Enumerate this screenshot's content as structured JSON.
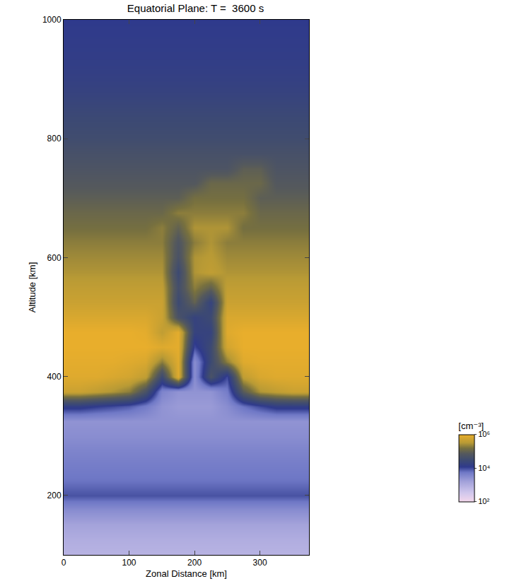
{
  "chart_data": {
    "type": "heatmap",
    "title": "Equatorial Plane: T =  3600 s",
    "x_label": "Zonal Distance [km]",
    "y_label": "Altitude [km]",
    "xlim": [
      0,
      375
    ],
    "ylim": [
      100,
      1000
    ],
    "xticks": [
      0,
      100,
      200,
      300
    ],
    "yticks": [
      200,
      400,
      600,
      800,
      1000
    ],
    "x": [
      0,
      25,
      50,
      75,
      100,
      125,
      150,
      175,
      200,
      225,
      250,
      275,
      300,
      325,
      350,
      375
    ],
    "y": [
      100,
      125,
      150,
      175,
      200,
      225,
      250,
      275,
      300,
      325,
      350,
      375,
      400,
      425,
      450,
      475,
      500,
      525,
      550,
      575,
      600,
      625,
      650,
      675,
      700,
      725,
      750,
      775,
      800,
      825,
      850,
      875,
      900,
      925,
      950,
      975,
      1000
    ],
    "cells": [
      [
        800.0,
        800.0,
        800.0,
        800.0,
        800.0,
        800.0,
        800.0,
        800.0,
        800.0,
        800.0,
        800.0,
        800.0,
        800.0,
        800.0,
        800.0,
        800.0
      ],
      [
        1000.0,
        1000.0,
        1000.0,
        1000.0,
        1000.0,
        1000.0,
        1000.0,
        1000.0,
        1000.0,
        1000.0,
        1000.0,
        1000.0,
        1000.0,
        1000.0,
        1000.0,
        1000.0
      ],
      [
        1500.0,
        1500.0,
        1500.0,
        1500.0,
        1500.0,
        1500.0,
        1500.0,
        1500.0,
        1500.0,
        1500.0,
        1500.0,
        1500.0,
        1500.0,
        1500.0,
        1500.0,
        1500.0
      ],
      [
        3000.0,
        3000.0,
        3000.0,
        3000.0,
        3000.0,
        3000.0,
        3000.0,
        3000.0,
        3000.0,
        3000.0,
        3000.0,
        3000.0,
        3000.0,
        3000.0,
        3000.0,
        3000.0
      ],
      [
        9000.0,
        9000.0,
        9000.0,
        9000.0,
        9000.0,
        9000.0,
        9000.0,
        9000.0,
        9000.0,
        9000.0,
        9000.0,
        9000.0,
        9000.0,
        9000.0,
        9000.0,
        9000.0
      ],
      [
        6000.0,
        6000.0,
        6000.0,
        6000.0,
        6000.0,
        6000.0,
        6000.0,
        6000.0,
        6000.0,
        6000.0,
        6000.0,
        6000.0,
        6000.0,
        6000.0,
        6000.0,
        6000.0
      ],
      [
        5000.0,
        5000.0,
        5000.0,
        5000.0,
        5000.0,
        5000.0,
        5000.0,
        5000.0,
        5000.0,
        5000.0,
        5000.0,
        5000.0,
        5000.0,
        5000.0,
        5000.0,
        5000.0
      ],
      [
        4000.0,
        4000.0,
        4000.0,
        4000.0,
        4000.0,
        4000.0,
        4000.0,
        4000.0,
        4000.0,
        4000.0,
        4000.0,
        4000.0,
        4000.0,
        4000.0,
        4000.0,
        4000.0
      ],
      [
        3000.0,
        3000.0,
        3000.0,
        3000.0,
        3000.0,
        3000.0,
        3000.0,
        3000.0,
        3000.0,
        3000.0,
        3000.0,
        3000.0,
        3000.0,
        3000.0,
        3000.0,
        3000.0
      ],
      [
        2500.0,
        2500.0,
        2500.0,
        2500.0,
        2500.0,
        2500.0,
        2500.0,
        2500.0,
        2500.0,
        2500.0,
        2500.0,
        2500.0,
        2500.0,
        2500.0,
        2500.0,
        2500.0
      ],
      [
        15000.0,
        15000.0,
        12000.0,
        10000.0,
        8000.0,
        5000.0,
        2500.0,
        2000.0,
        2000.0,
        2000.0,
        3000.0,
        6000.0,
        10000.0,
        15000.0,
        15000.0,
        15000.0
      ],
      [
        500000.0,
        500000.0,
        400000.0,
        300000.0,
        200000.0,
        50000.0,
        4000.0,
        2500.0,
        2500.0,
        2500.0,
        5000.0,
        80000.0,
        300000.0,
        400000.0,
        500000.0,
        500000.0
      ],
      [
        800000.0,
        800000.0,
        800000.0,
        700000.0,
        600000.0,
        400000.0,
        30000.0,
        800000.0,
        3000.0,
        50000.0,
        10000.0,
        400000.0,
        700000.0,
        800000.0,
        800000.0,
        800000.0
      ],
      [
        900000.0,
        900000.0,
        900000.0,
        900000.0,
        800000.0,
        700000.0,
        200000.0,
        800000.0,
        3000.0,
        30000.0,
        200000.0,
        800000.0,
        900000.0,
        900000.0,
        900000.0,
        900000.0
      ],
      [
        1000000.0,
        1000000.0,
        1000000.0,
        1000000.0,
        1000000.0,
        1000000.0,
        800000.0,
        900000.0,
        10000.0,
        30000.0,
        600000.0,
        1000000.0,
        1000000.0,
        1000000.0,
        1000000.0,
        1000000.0
      ],
      [
        1000000.0,
        1000000.0,
        1000000.0,
        1000000.0,
        1000000.0,
        900000.0,
        400000.0,
        900000.0,
        20000.0,
        20000.0,
        800000.0,
        1000000.0,
        1000000.0,
        1000000.0,
        1000000.0,
        1000000.0
      ],
      [
        700000.0,
        700000.0,
        700000.0,
        700000.0,
        700000.0,
        700000.0,
        500000.0,
        50000.0,
        20000.0,
        30000.0,
        700000.0,
        700000.0,
        700000.0,
        700000.0,
        700000.0,
        700000.0
      ],
      [
        500000.0,
        500000.0,
        500000.0,
        500000.0,
        500000.0,
        500000.0,
        500000.0,
        30000.0,
        100000.0,
        20000.0,
        500000.0,
        500000.0,
        500000.0,
        500000.0,
        500000.0,
        500000.0
      ],
      [
        400000.0,
        400000.0,
        400000.0,
        400000.0,
        400000.0,
        400000.0,
        400000.0,
        40000.0,
        200000.0,
        100000.0,
        400000.0,
        400000.0,
        400000.0,
        400000.0,
        400000.0,
        400000.0
      ],
      [
        300000.0,
        300000.0,
        300000.0,
        300000.0,
        300000.0,
        300000.0,
        300000.0,
        30000.0,
        300000.0,
        400000.0,
        300000.0,
        300000.0,
        300000.0,
        300000.0,
        300000.0,
        300000.0
      ],
      [
        250000.0,
        250000.0,
        250000.0,
        250000.0,
        250000.0,
        250000.0,
        250000.0,
        50000.0,
        300000.0,
        350000.0,
        250000.0,
        250000.0,
        250000.0,
        250000.0,
        250000.0,
        250000.0
      ],
      [
        200000.0,
        200000.0,
        200000.0,
        200000.0,
        200000.0,
        200000.0,
        200000.0,
        60000.0,
        200000.0,
        300000.0,
        200000.0,
        200000.0,
        200000.0,
        200000.0,
        200000.0,
        200000.0
      ],
      [
        150000.0,
        150000.0,
        150000.0,
        150000.0,
        150000.0,
        150000.0,
        200000.0,
        100000.0,
        300000.0,
        300000.0,
        300000.0,
        150000.0,
        150000.0,
        150000.0,
        150000.0,
        150000.0
      ],
      [
        120000.0,
        120000.0,
        120000.0,
        120000.0,
        120000.0,
        120000.0,
        120000.0,
        200000.0,
        200000.0,
        200000.0,
        200000.0,
        200000.0,
        120000.0,
        120000.0,
        120000.0,
        120000.0
      ],
      [
        90000.0,
        90000.0,
        90000.0,
        90000.0,
        90000.0,
        90000.0,
        90000.0,
        90000.0,
        150000.0,
        150000.0,
        150000.0,
        150000.0,
        90000.0,
        90000.0,
        90000.0,
        90000.0
      ],
      [
        70000.0,
        70000.0,
        70000.0,
        70000.0,
        70000.0,
        70000.0,
        70000.0,
        70000.0,
        70000.0,
        120000.0,
        120000.0,
        120000.0,
        120000.0,
        70000.0,
        70000.0,
        70000.0
      ],
      [
        55000.0,
        55000.0,
        55000.0,
        55000.0,
        55000.0,
        55000.0,
        55000.0,
        55000.0,
        55000.0,
        55000.0,
        55000.0,
        90000.0,
        90000.0,
        55000.0,
        55000.0,
        55000.0
      ],
      [
        45000.0,
        45000.0,
        45000.0,
        45000.0,
        45000.0,
        45000.0,
        45000.0,
        45000.0,
        45000.0,
        45000.0,
        45000.0,
        45000.0,
        45000.0,
        45000.0,
        45000.0,
        45000.0
      ],
      [
        35000.0,
        35000.0,
        35000.0,
        35000.0,
        35000.0,
        35000.0,
        35000.0,
        35000.0,
        35000.0,
        35000.0,
        35000.0,
        35000.0,
        35000.0,
        35000.0,
        35000.0,
        35000.0
      ],
      [
        30000.0,
        30000.0,
        30000.0,
        30000.0,
        30000.0,
        30000.0,
        30000.0,
        30000.0,
        30000.0,
        30000.0,
        30000.0,
        30000.0,
        30000.0,
        30000.0,
        30000.0,
        30000.0
      ],
      [
        25000.0,
        25000.0,
        25000.0,
        25000.0,
        25000.0,
        25000.0,
        25000.0,
        25000.0,
        25000.0,
        25000.0,
        25000.0,
        25000.0,
        25000.0,
        25000.0,
        25000.0,
        25000.0
      ],
      [
        20000.0,
        20000.0,
        20000.0,
        20000.0,
        20000.0,
        20000.0,
        20000.0,
        20000.0,
        20000.0,
        20000.0,
        20000.0,
        20000.0,
        20000.0,
        20000.0,
        20000.0,
        20000.0
      ],
      [
        17000.0,
        17000.0,
        17000.0,
        17000.0,
        17000.0,
        17000.0,
        17000.0,
        17000.0,
        17000.0,
        17000.0,
        17000.0,
        17000.0,
        17000.0,
        17000.0,
        17000.0,
        17000.0
      ],
      [
        15000.0,
        15000.0,
        15000.0,
        15000.0,
        15000.0,
        15000.0,
        15000.0,
        15000.0,
        15000.0,
        15000.0,
        15000.0,
        15000.0,
        15000.0,
        15000.0,
        15000.0,
        15000.0
      ],
      [
        14000.0,
        14000.0,
        14000.0,
        14000.0,
        14000.0,
        14000.0,
        14000.0,
        14000.0,
        14000.0,
        14000.0,
        14000.0,
        14000.0,
        14000.0,
        14000.0,
        14000.0,
        14000.0
      ],
      [
        13000.0,
        13000.0,
        13000.0,
        13000.0,
        13000.0,
        13000.0,
        13000.0,
        13000.0,
        13000.0,
        13000.0,
        13000.0,
        13000.0,
        13000.0,
        13000.0,
        13000.0,
        13000.0
      ],
      [
        12000.0,
        12000.0,
        12000.0,
        12000.0,
        12000.0,
        12000.0,
        12000.0,
        12000.0,
        12000.0,
        12000.0,
        12000.0,
        12000.0,
        12000.0,
        12000.0,
        12000.0,
        12000.0
      ]
    ],
    "colorbar": {
      "title": "[cm⁻³]",
      "range": [
        100,
        1000000
      ],
      "log": true,
      "ticks": [
        {
          "value": 1000000,
          "label": "10⁶"
        },
        {
          "value": 10000,
          "label": "10⁴"
        },
        {
          "value": 100,
          "label": "10²"
        }
      ]
    }
  }
}
